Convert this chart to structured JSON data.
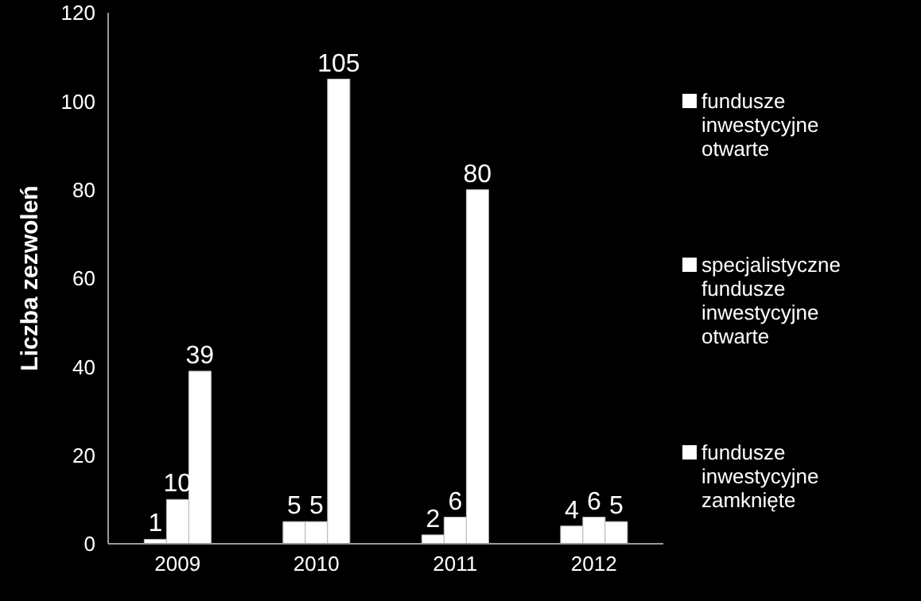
{
  "chart_data": {
    "type": "bar",
    "ylabel": "Liczba zezwoleń",
    "categories": [
      "2009",
      "2010",
      "2011",
      "2012"
    ],
    "series": [
      {
        "name": "fundusze inwestycyjne otwarte",
        "color": "#ffffff",
        "values": [
          1,
          5,
          2,
          4
        ]
      },
      {
        "name": "specjalistyczne fundusze inwestycyjne otwarte",
        "color": "#ffffff",
        "values": [
          10,
          5,
          6,
          6
        ]
      },
      {
        "name": "fundusze inwestycyjne zamknięte",
        "color": "#ffffff",
        "values": [
          39,
          105,
          80,
          5
        ]
      }
    ],
    "ylim": [
      0,
      120
    ],
    "yticks": [
      0,
      20,
      40,
      60,
      80,
      100,
      120
    ],
    "data_labels": true,
    "legend": "right",
    "grid": false
  }
}
